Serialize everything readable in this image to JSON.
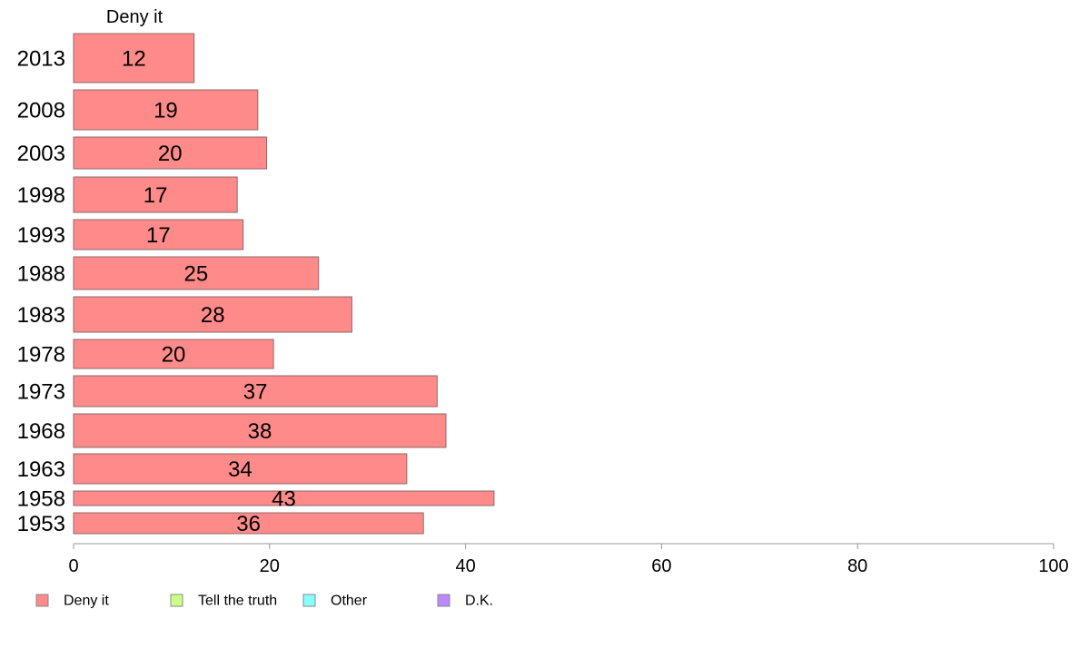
{
  "chart_data": {
    "type": "bar",
    "orientation": "horizontal",
    "panel_title": "Deny it",
    "categories": [
      "2013",
      "2008",
      "2003",
      "1998",
      "1993",
      "1988",
      "1983",
      "1978",
      "1973",
      "1968",
      "1963",
      "1958",
      "1953"
    ],
    "series": [
      {
        "name": "Deny it",
        "color": "#ff8a8a",
        "values": [
          12.3,
          18.8,
          19.7,
          16.7,
          17.3,
          25.0,
          28.4,
          20.4,
          37.1,
          38.0,
          34.0,
          42.9,
          35.7
        ]
      }
    ],
    "value_labels": [
      "12",
      "19",
      "20",
      "17",
      "17",
      "25",
      "28",
      "20",
      "37",
      "38",
      "34",
      "43",
      "36"
    ],
    "xlim": [
      0,
      100
    ],
    "xticks": [
      "0",
      "20",
      "40",
      "60",
      "80",
      "100"
    ],
    "grid": false,
    "legend_position": "bottom-left",
    "legend": [
      {
        "label": "Deny it",
        "color": "#ff8a8a"
      },
      {
        "label": "Tell the truth",
        "color": "#ccff88"
      },
      {
        "label": "Other",
        "color": "#88ffff"
      },
      {
        "label": "D.K.",
        "color": "#bb88ff"
      }
    ]
  }
}
